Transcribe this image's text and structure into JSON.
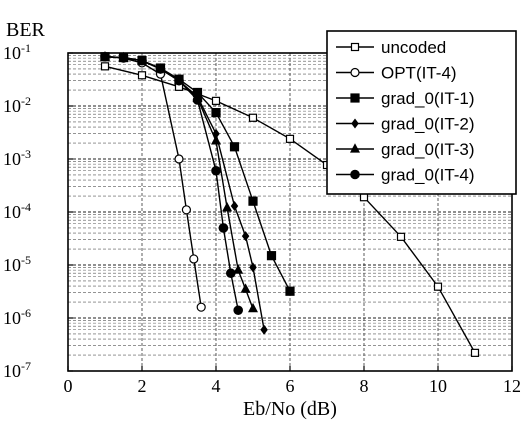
{
  "chart_data": {
    "type": "line",
    "title": "",
    "xlabel": "Eb/No (dB)",
    "ylabel": "BER",
    "xlim": [
      0,
      12
    ],
    "ylim": [
      1e-07,
      0.1
    ],
    "yscale": "log",
    "grid": true,
    "legend_position": "top-right",
    "x_ticks": [
      {
        "value": 0,
        "label": "0"
      },
      {
        "value": 2,
        "label": "2"
      },
      {
        "value": 4,
        "label": "4"
      },
      {
        "value": 6,
        "label": "6"
      },
      {
        "value": 8,
        "label": "8"
      },
      {
        "value": 10,
        "label": "10"
      },
      {
        "value": 12,
        "label": "12"
      }
    ],
    "y_ticks": [
      {
        "value": 0.1,
        "base": "10",
        "exp": "-1"
      },
      {
        "value": 0.01,
        "base": "10",
        "exp": "-2"
      },
      {
        "value": 0.001,
        "base": "10",
        "exp": "-3"
      },
      {
        "value": 0.0001,
        "base": "10",
        "exp": "-4"
      },
      {
        "value": 1e-05,
        "base": "10",
        "exp": "-5"
      },
      {
        "value": 1e-06,
        "base": "10",
        "exp": "-6"
      },
      {
        "value": 1e-07,
        "base": "10",
        "exp": "-7"
      }
    ],
    "series": [
      {
        "name": "uncoded",
        "marker": "square-open",
        "x": [
          1,
          2,
          3,
          4,
          5,
          6,
          7,
          8,
          9,
          10,
          11
        ],
        "y": [
          0.056,
          0.038,
          0.023,
          0.0125,
          0.006,
          0.0024,
          0.00077,
          0.00019,
          3.4e-05,
          3.9e-06,
          2.2e-07
        ]
      },
      {
        "name": "OPT(IT-4)",
        "marker": "circle-open",
        "x": [
          1,
          1.5,
          2,
          2.5,
          3,
          3.2,
          3.4,
          3.6
        ],
        "y": [
          0.085,
          0.08,
          0.065,
          0.04,
          0.001,
          0.00011,
          1.3e-05,
          1.6e-06
        ]
      },
      {
        "name": "grad_0(IT-1)",
        "marker": "square-filled",
        "x": [
          1,
          1.5,
          2,
          2.5,
          3,
          3.5,
          4,
          4.5,
          5,
          5.5,
          6
        ],
        "y": [
          0.085,
          0.082,
          0.072,
          0.052,
          0.032,
          0.018,
          0.0075,
          0.0017,
          0.00016,
          1.5e-05,
          3.2e-06
        ]
      },
      {
        "name": "grad_0(IT-2)",
        "marker": "diamond-filled",
        "x": [
          1,
          1.5,
          2,
          2.5,
          3,
          3.5,
          4,
          4.5,
          4.8,
          5,
          5.3
        ],
        "y": [
          0.085,
          0.082,
          0.072,
          0.05,
          0.03,
          0.015,
          0.003,
          0.00013,
          3.5e-05,
          9e-06,
          6e-07
        ]
      },
      {
        "name": "grad_0(IT-3)",
        "marker": "triangle-filled",
        "x": [
          1,
          1.5,
          2,
          2.5,
          3,
          3.5,
          4,
          4.3,
          4.6,
          4.8,
          5
        ],
        "y": [
          0.085,
          0.082,
          0.072,
          0.05,
          0.03,
          0.014,
          0.0022,
          0.00012,
          8e-06,
          3.5e-06,
          1.5e-06
        ]
      },
      {
        "name": "grad_0(IT-4)",
        "marker": "circle-filled",
        "x": [
          1,
          1.5,
          2,
          2.5,
          3,
          3.5,
          4,
          4.2,
          4.4,
          4.6
        ],
        "y": [
          0.085,
          0.082,
          0.072,
          0.05,
          0.03,
          0.013,
          0.0006,
          5e-05,
          7e-06,
          1.4e-06
        ]
      }
    ]
  }
}
